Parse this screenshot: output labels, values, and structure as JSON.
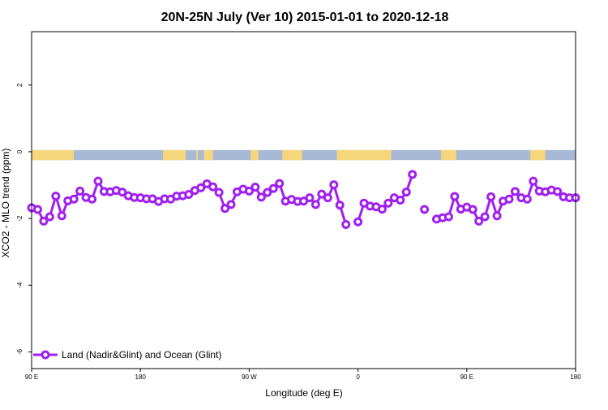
{
  "chart_data": {
    "type": "line",
    "title": "20N-25N July (Ver 10)   2015-01-01 to 2020-12-18",
    "xlabel": "Longitude (deg E)",
    "ylabel": "XCO2 - MLO trend (ppm)",
    "xlim": [
      -180,
      180
    ],
    "ylim": [
      -6.5,
      3.6
    ],
    "x_ticks": [
      {
        "value": -180,
        "label": "90 E"
      },
      {
        "value": -108,
        "label": "180"
      },
      {
        "value": -36,
        "label": "90 W"
      },
      {
        "value": 36,
        "label": "0"
      },
      {
        "value": 108,
        "label": "90 E"
      },
      {
        "value": 180,
        "label": "180"
      }
    ],
    "y_ticks": [
      {
        "value": 2,
        "label": "2"
      },
      {
        "value": 0,
        "label": "0"
      },
      {
        "value": -2,
        "label": "-2"
      },
      {
        "value": -4,
        "label": "-4"
      },
      {
        "value": -6,
        "label": "-6"
      }
    ],
    "grid": false,
    "legend_position": "bottom-left",
    "map_strip": {
      "y_top": 0.05,
      "y_bottom": -0.25,
      "ocean_color": "#a8b9d6",
      "land_color": "#f5d67a",
      "land_x_ranges": [
        [
          -180,
          -152
        ],
        [
          -93,
          -78
        ],
        [
          -71,
          -70
        ],
        [
          -66,
          -60
        ],
        [
          -35,
          -30
        ],
        [
          -14,
          -1
        ],
        [
          22,
          58
        ],
        [
          91,
          101
        ],
        [
          150,
          160
        ]
      ]
    },
    "series": [
      {
        "name": "Land (Nadir&Glint) and Ocean (Glint)",
        "color": "#a020f0",
        "points": [
          [
            -180,
            -1.68
          ],
          [
            -176,
            -1.73
          ],
          [
            -172,
            -2.08
          ],
          [
            -168,
            -1.95
          ],
          [
            -164,
            -1.33
          ],
          [
            -160,
            -1.92
          ],
          [
            -156,
            -1.47
          ],
          [
            -152,
            -1.42
          ],
          [
            -148,
            -1.18
          ],
          [
            -144,
            -1.37
          ],
          [
            -140,
            -1.42
          ],
          [
            -136,
            -0.88
          ],
          [
            -132,
            -1.19
          ],
          [
            -128,
            -1.2
          ],
          [
            -124,
            -1.16
          ],
          [
            -120,
            -1.21
          ],
          [
            -116,
            -1.32
          ],
          [
            -112,
            -1.37
          ],
          [
            -108,
            -1.38
          ],
          [
            -104,
            -1.41
          ],
          [
            -100,
            -1.41
          ],
          [
            -96,
            -1.49
          ],
          [
            -92,
            -1.41
          ],
          [
            -88,
            -1.42
          ],
          [
            -84,
            -1.33
          ],
          [
            -80,
            -1.32
          ],
          [
            -76,
            -1.28
          ],
          [
            -72,
            -1.16
          ],
          [
            -68,
            -1.08
          ],
          [
            -64,
            -0.96
          ],
          [
            -60,
            -1.05
          ],
          [
            -56,
            -1.22
          ],
          [
            -52,
            -1.7
          ],
          [
            -48,
            -1.58
          ],
          [
            -44,
            -1.2
          ],
          [
            -40,
            -1.12
          ],
          [
            -36,
            -1.18
          ],
          [
            -32,
            -1.06
          ],
          [
            -28,
            -1.36
          ],
          [
            -24,
            -1.22
          ],
          [
            -20,
            -1.1
          ],
          [
            -16,
            -0.95
          ],
          [
            -12,
            -1.48
          ],
          [
            -8,
            -1.43
          ],
          [
            -4,
            -1.49
          ],
          [
            0,
            -1.48
          ],
          [
            4,
            -1.38
          ],
          [
            8,
            -1.58
          ],
          [
            12,
            -1.27
          ],
          [
            16,
            -1.38
          ],
          [
            20,
            -0.99
          ],
          [
            24,
            -1.6
          ],
          [
            28,
            -2.18
          ],
          null,
          [
            36,
            -2.1
          ],
          [
            40,
            -1.54
          ],
          [
            44,
            -1.63
          ],
          [
            48,
            -1.65
          ],
          [
            52,
            -1.72
          ],
          [
            56,
            -1.54
          ],
          [
            60,
            -1.38
          ],
          [
            64,
            -1.45
          ],
          [
            68,
            -1.21
          ],
          [
            72,
            -0.68
          ],
          null,
          [
            80,
            -1.73
          ],
          null,
          [
            88,
            -2.02
          ],
          [
            92,
            -1.98
          ],
          [
            96,
            -1.95
          ],
          [
            100,
            -1.34
          ],
          [
            104,
            -1.72
          ],
          [
            108,
            -1.66
          ],
          [
            112,
            -1.73
          ],
          [
            116,
            -2.08
          ],
          [
            120,
            -1.95
          ],
          [
            124,
            -1.35
          ],
          [
            128,
            -1.92
          ],
          [
            132,
            -1.48
          ],
          [
            136,
            -1.42
          ],
          [
            140,
            -1.19
          ],
          [
            144,
            -1.38
          ],
          [
            148,
            -1.42
          ],
          [
            152,
            -0.88
          ],
          [
            156,
            -1.18
          ],
          [
            160,
            -1.2
          ],
          [
            164,
            -1.15
          ],
          [
            168,
            -1.19
          ],
          [
            172,
            -1.35
          ],
          [
            176,
            -1.38
          ],
          [
            180,
            -1.38
          ]
        ]
      }
    ]
  }
}
